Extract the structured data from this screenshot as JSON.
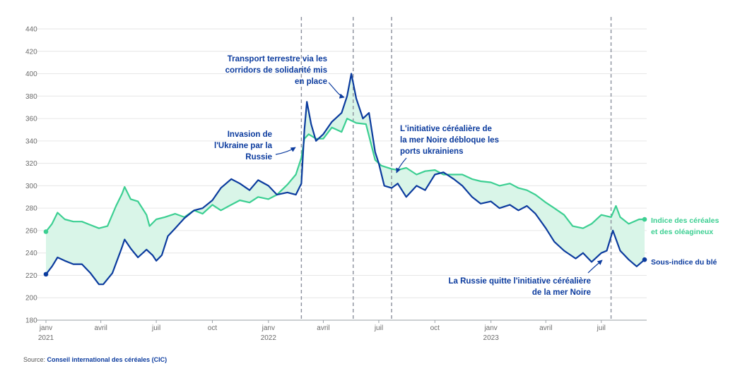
{
  "chart_data": {
    "type": "line",
    "title": "",
    "xlabel": "",
    "ylabel": "",
    "ylim": [
      180,
      440
    ],
    "y_ticks": [
      "180",
      "200",
      "220",
      "240",
      "260",
      "280",
      "300",
      "320",
      "340",
      "360",
      "380",
      "400",
      "420",
      "440"
    ],
    "x_ticks": [
      {
        "date": "2021-01-01",
        "label": "janv",
        "sub": "2021"
      },
      {
        "date": "2021-04-01",
        "label": "avril",
        "sub": ""
      },
      {
        "date": "2021-07-01",
        "label": "juil",
        "sub": ""
      },
      {
        "date": "2021-10-01",
        "label": "oct",
        "sub": ""
      },
      {
        "date": "2022-01-01",
        "label": "janv",
        "sub": "2022"
      },
      {
        "date": "2022-04-01",
        "label": "avril",
        "sub": ""
      },
      {
        "date": "2022-07-01",
        "label": "juil",
        "sub": ""
      },
      {
        "date": "2022-10-01",
        "label": "oct",
        "sub": ""
      },
      {
        "date": "2023-01-01",
        "label": "janv",
        "sub": "2023"
      },
      {
        "date": "2023-04-01",
        "label": "avril",
        "sub": ""
      },
      {
        "date": "2023-07-01",
        "label": "juil",
        "sub": ""
      }
    ],
    "grid": true,
    "colors": {
      "grains": "#3ccf92",
      "wheat": "#0b3b9e",
      "fill": "#d9f5e8",
      "annotation": "#0b3b9e",
      "vline": "#8a8f9c"
    },
    "series": [
      {
        "name": "Indice des céréales et des oléagineux",
        "points": [
          [
            "2021-01-01",
            259
          ],
          [
            "2021-01-11",
            266
          ],
          [
            "2021-01-20",
            276
          ],
          [
            "2021-02-01",
            270
          ],
          [
            "2021-02-15",
            268
          ],
          [
            "2021-03-01",
            268
          ],
          [
            "2021-03-15",
            265
          ],
          [
            "2021-03-29",
            262
          ],
          [
            "2021-04-12",
            264
          ],
          [
            "2021-04-26",
            282
          ],
          [
            "2021-05-06",
            293
          ],
          [
            "2021-05-10",
            299
          ],
          [
            "2021-05-20",
            288
          ],
          [
            "2021-06-01",
            286
          ],
          [
            "2021-06-15",
            274
          ],
          [
            "2021-06-20",
            264
          ],
          [
            "2021-07-01",
            270
          ],
          [
            "2021-07-15",
            272
          ],
          [
            "2021-08-01",
            275
          ],
          [
            "2021-08-16",
            272
          ],
          [
            "2021-09-01",
            278
          ],
          [
            "2021-09-15",
            275
          ],
          [
            "2021-10-01",
            283
          ],
          [
            "2021-10-15",
            278
          ],
          [
            "2021-11-01",
            283
          ],
          [
            "2021-11-15",
            287
          ],
          [
            "2021-12-01",
            285
          ],
          [
            "2021-12-15",
            290
          ],
          [
            "2022-01-01",
            288
          ],
          [
            "2022-01-15",
            292
          ],
          [
            "2022-02-01",
            301
          ],
          [
            "2022-02-15",
            310
          ],
          [
            "2022-02-24",
            325
          ],
          [
            "2022-03-01",
            342
          ],
          [
            "2022-03-08",
            346
          ],
          [
            "2022-03-20",
            342
          ],
          [
            "2022-04-01",
            342
          ],
          [
            "2022-04-15",
            352
          ],
          [
            "2022-05-01",
            348
          ],
          [
            "2022-05-10",
            360
          ],
          [
            "2022-05-25",
            356
          ],
          [
            "2022-06-10",
            355
          ],
          [
            "2022-06-25",
            323
          ],
          [
            "2022-07-05",
            318
          ],
          [
            "2022-07-22",
            315
          ],
          [
            "2022-08-01",
            314
          ],
          [
            "2022-08-15",
            316
          ],
          [
            "2022-09-01",
            310
          ],
          [
            "2022-09-15",
            313
          ],
          [
            "2022-10-01",
            314
          ],
          [
            "2022-10-15",
            310
          ],
          [
            "2022-11-01",
            310
          ],
          [
            "2022-11-15",
            310
          ],
          [
            "2022-12-01",
            306
          ],
          [
            "2022-12-15",
            304
          ],
          [
            "2023-01-01",
            303
          ],
          [
            "2023-01-15",
            300
          ],
          [
            "2023-02-01",
            302
          ],
          [
            "2023-02-15",
            298
          ],
          [
            "2023-03-01",
            296
          ],
          [
            "2023-03-15",
            292
          ],
          [
            "2023-04-01",
            285
          ],
          [
            "2023-04-15",
            280
          ],
          [
            "2023-05-01",
            274
          ],
          [
            "2023-05-15",
            264
          ],
          [
            "2023-06-01",
            262
          ],
          [
            "2023-06-15",
            266
          ],
          [
            "2023-07-01",
            274
          ],
          [
            "2023-07-17",
            272
          ],
          [
            "2023-07-25",
            282
          ],
          [
            "2023-08-01",
            272
          ],
          [
            "2023-08-15",
            266
          ],
          [
            "2023-09-01",
            270
          ],
          [
            "2023-09-10",
            270
          ]
        ]
      },
      {
        "name": "Sous-indice du blé",
        "points": [
          [
            "2021-01-01",
            221
          ],
          [
            "2021-01-11",
            228
          ],
          [
            "2021-01-20",
            236
          ],
          [
            "2021-02-01",
            233
          ],
          [
            "2021-02-15",
            230
          ],
          [
            "2021-03-01",
            230
          ],
          [
            "2021-03-15",
            222
          ],
          [
            "2021-03-29",
            212
          ],
          [
            "2021-04-05",
            212
          ],
          [
            "2021-04-20",
            222
          ],
          [
            "2021-05-05",
            244
          ],
          [
            "2021-05-10",
            252
          ],
          [
            "2021-05-20",
            244
          ],
          [
            "2021-06-01",
            236
          ],
          [
            "2021-06-15",
            243
          ],
          [
            "2021-06-25",
            238
          ],
          [
            "2021-07-01",
            233
          ],
          [
            "2021-07-10",
            238
          ],
          [
            "2021-07-20",
            255
          ],
          [
            "2021-08-01",
            262
          ],
          [
            "2021-08-16",
            271
          ],
          [
            "2021-09-01",
            278
          ],
          [
            "2021-09-15",
            280
          ],
          [
            "2021-10-01",
            287
          ],
          [
            "2021-10-15",
            298
          ],
          [
            "2021-11-01",
            306
          ],
          [
            "2021-11-15",
            302
          ],
          [
            "2021-12-01",
            296
          ],
          [
            "2021-12-15",
            305
          ],
          [
            "2022-01-01",
            300
          ],
          [
            "2022-01-15",
            292
          ],
          [
            "2022-02-01",
            294
          ],
          [
            "2022-02-15",
            292
          ],
          [
            "2022-02-24",
            302
          ],
          [
            "2022-03-01",
            350
          ],
          [
            "2022-03-05",
            375
          ],
          [
            "2022-03-12",
            355
          ],
          [
            "2022-03-20",
            340
          ],
          [
            "2022-04-01",
            346
          ],
          [
            "2022-04-15",
            357
          ],
          [
            "2022-05-01",
            365
          ],
          [
            "2022-05-10",
            380
          ],
          [
            "2022-05-17",
            400
          ],
          [
            "2022-05-25",
            378
          ],
          [
            "2022-06-05",
            360
          ],
          [
            "2022-06-15",
            365
          ],
          [
            "2022-06-25",
            330
          ],
          [
            "2022-07-01",
            320
          ],
          [
            "2022-07-10",
            300
          ],
          [
            "2022-07-22",
            298
          ],
          [
            "2022-08-01",
            302
          ],
          [
            "2022-08-15",
            290
          ],
          [
            "2022-09-01",
            300
          ],
          [
            "2022-09-15",
            296
          ],
          [
            "2022-10-01",
            310
          ],
          [
            "2022-10-15",
            312
          ],
          [
            "2022-11-01",
            306
          ],
          [
            "2022-11-15",
            300
          ],
          [
            "2022-12-01",
            290
          ],
          [
            "2022-12-15",
            284
          ],
          [
            "2023-01-01",
            286
          ],
          [
            "2023-01-15",
            280
          ],
          [
            "2023-02-01",
            283
          ],
          [
            "2023-02-15",
            278
          ],
          [
            "2023-03-01",
            282
          ],
          [
            "2023-03-15",
            275
          ],
          [
            "2023-04-01",
            262
          ],
          [
            "2023-04-15",
            250
          ],
          [
            "2023-05-01",
            242
          ],
          [
            "2023-05-20",
            235
          ],
          [
            "2023-06-01",
            240
          ],
          [
            "2023-06-15",
            232
          ],
          [
            "2023-07-01",
            240
          ],
          [
            "2023-07-10",
            242
          ],
          [
            "2023-07-20",
            260
          ],
          [
            "2023-08-01",
            242
          ],
          [
            "2023-08-15",
            234
          ],
          [
            "2023-08-28",
            228
          ],
          [
            "2023-09-10",
            234
          ]
        ]
      }
    ],
    "events": [
      {
        "date": "2022-02-24",
        "lines": [
          "Invasion de",
          "l'Ukraine par la",
          "Russie"
        ]
      },
      {
        "date": "2022-05-20",
        "lines": [
          "Transport terrestre via les",
          "corridors de solidarité mis",
          "en place"
        ]
      },
      {
        "date": "2022-07-22",
        "lines": [
          "L'initiative céréalière de",
          "la mer Noire débloque les",
          "ports ukrainiens"
        ]
      },
      {
        "date": "2023-07-17",
        "lines": [
          "La Russie quitte l'initiative céréalière",
          "de la mer Noire"
        ]
      }
    ],
    "legend": [
      {
        "series": 0,
        "lines": [
          "Indice des céréales",
          "et des oléagineux"
        ]
      },
      {
        "series": 1,
        "lines": [
          "Sous-indice du blé"
        ]
      }
    ]
  },
  "source": {
    "label": "Source:",
    "name": "Conseil international des céréales (CIC)"
  }
}
